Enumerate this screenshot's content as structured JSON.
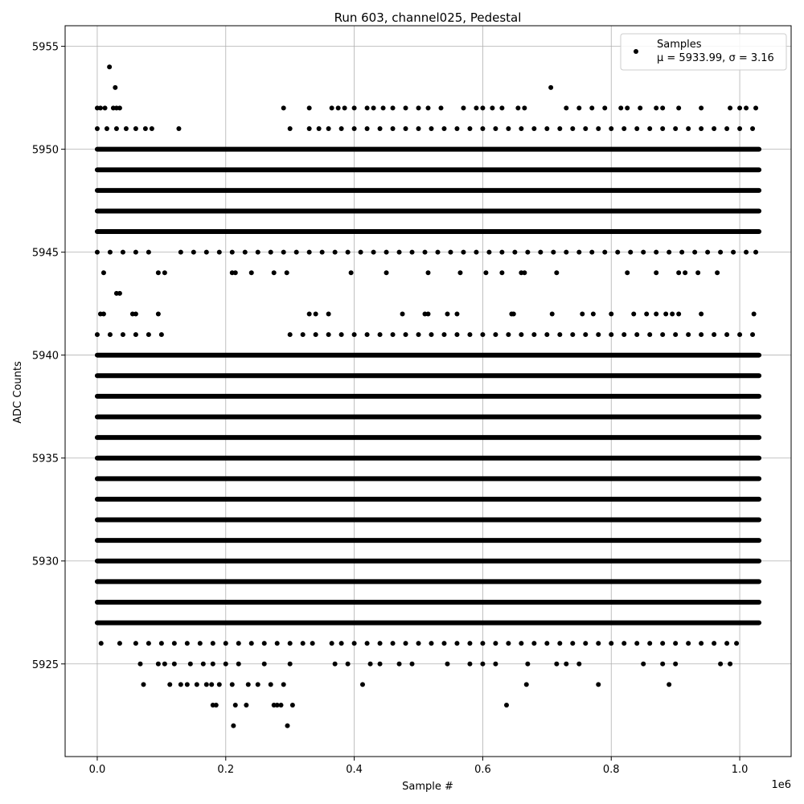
{
  "chart_data": {
    "type": "scatter",
    "title": "Run 603, channel025, Pedestal",
    "xlabel": "Sample #",
    "ylabel": "ADC Counts",
    "x_offset_label": "1e6",
    "xlim": [
      -50000,
      1080000
    ],
    "ylim": [
      5920.5,
      5956
    ],
    "x_ticks": [
      0,
      200000,
      400000,
      600000,
      800000,
      1000000
    ],
    "x_tick_labels": [
      "0.0",
      "0.2",
      "0.4",
      "0.6",
      "0.8",
      "1.0"
    ],
    "y_ticks": [
      5925,
      5930,
      5935,
      5940,
      5945,
      5950,
      5955
    ],
    "y_tick_labels": [
      "5925",
      "5930",
      "5935",
      "5940",
      "5945",
      "5950",
      "5955"
    ],
    "grid": true,
    "legend_position": "top-right",
    "marker_color": "#000000",
    "x_range": [
      0,
      1030000
    ],
    "series": [
      {
        "name": "Samples",
        "stat_label": "μ = 5933.99, σ = 3.16",
        "levels": [
          {
            "y": 5927,
            "x_start": 0,
            "x_end": 1030000
          },
          {
            "y": 5928,
            "x_start": 0,
            "x_end": 1030000
          },
          {
            "y": 5929,
            "x_start": 0,
            "x_end": 1030000
          },
          {
            "y": 5930,
            "x_start": 0,
            "x_end": 1030000
          },
          {
            "y": 5931,
            "x_start": 0,
            "x_end": 1030000
          },
          {
            "y": 5932,
            "x_start": 0,
            "x_end": 1030000
          },
          {
            "y": 5933,
            "x_start": 0,
            "x_end": 1030000
          },
          {
            "y": 5934,
            "x_start": 0,
            "x_end": 1030000
          },
          {
            "y": 5935,
            "x_start": 0,
            "x_end": 1030000
          },
          {
            "y": 5936,
            "x_start": 0,
            "x_end": 1030000
          },
          {
            "y": 5937,
            "x_start": 0,
            "x_end": 1030000
          },
          {
            "y": 5938,
            "x_start": 0,
            "x_end": 1030000
          },
          {
            "y": 5939,
            "x_start": 0,
            "x_end": 1030000
          },
          {
            "y": 5940,
            "x_start": 0,
            "x_end": 1030000
          },
          {
            "y": 5946,
            "x_start": 0,
            "x_end": 1030000
          },
          {
            "y": 5947,
            "x_start": 0,
            "x_end": 1030000
          },
          {
            "y": 5948,
            "x_start": 0,
            "x_end": 1030000
          },
          {
            "y": 5949,
            "x_start": 0,
            "x_end": 1030000
          },
          {
            "y": 5950,
            "x_start": 0,
            "x_end": 1030000
          }
        ],
        "sparse_levels": [
          {
            "y": 5922,
            "x": [
              212000,
              296000
            ]
          },
          {
            "y": 5923,
            "x": [
              180000,
              185000,
              215000,
              232000,
              275000,
              280000,
              286000,
              304000,
              637000
            ]
          },
          {
            "y": 5924,
            "x": [
              72000,
              113000,
              130000,
              140000,
              155000,
              170000,
              178000,
              190000,
              210000,
              235000,
              250000,
              270000,
              290000,
              413000,
              668000,
              780000,
              890000
            ]
          },
          {
            "y": 5925,
            "x": [
              67000,
              95000,
              105000,
              120000,
              145000,
              165000,
              180000,
              200000,
              220000,
              260000,
              300000,
              370000,
              390000,
              425000,
              440000,
              470000,
              490000,
              545000,
              580000,
              600000,
              620000,
              670000,
              715000,
              730000,
              750000,
              850000,
              880000,
              900000,
              970000,
              985000
            ]
          },
          {
            "y": 5926,
            "x": [
              6000,
              35000,
              60000,
              80000,
              100000,
              120000,
              140000,
              160000,
              180000,
              200000,
              220000,
              240000,
              260000,
              280000,
              300000,
              320000,
              335000,
              365000,
              380000,
              400000,
              420000,
              440000,
              460000,
              480000,
              500000,
              520000,
              540000,
              560000,
              580000,
              600000,
              620000,
              640000,
              660000,
              680000,
              700000,
              720000,
              740000,
              760000,
              780000,
              800000,
              820000,
              840000,
              860000,
              880000,
              900000,
              920000,
              940000,
              960000,
              980000,
              995000
            ]
          },
          {
            "y": 5941,
            "x": [
              0,
              20000,
              40000,
              60000,
              80000,
              100000,
              300000,
              320000,
              340000,
              360000,
              380000,
              400000,
              420000,
              440000,
              460000,
              480000,
              500000,
              520000,
              540000,
              560000,
              580000,
              600000,
              620000,
              640000,
              660000,
              680000,
              700000,
              720000,
              740000,
              760000,
              780000,
              800000,
              820000,
              840000,
              860000,
              880000,
              900000,
              920000,
              940000,
              960000,
              980000,
              1000000,
              1020000
            ]
          },
          {
            "y": 5942,
            "x": [
              5000,
              10000,
              55000,
              60000,
              95000,
              330000,
              340000,
              360000,
              475000,
              510000,
              515000,
              545000,
              560000,
              645000,
              648000,
              708000,
              755000,
              772000,
              800000,
              835000,
              855000,
              870000,
              885000,
              895000,
              905000,
              940000,
              1022000
            ]
          },
          {
            "y": 5943,
            "x": [
              30000,
              35000
            ]
          },
          {
            "y": 5944,
            "x": [
              10000,
              95000,
              105000,
              210000,
              215000,
              240000,
              275000,
              295000,
              395000,
              450000,
              515000,
              565000,
              605000,
              630000,
              660000,
              665000,
              715000,
              825000,
              870000,
              905000,
              915000,
              935000,
              965000
            ]
          },
          {
            "y": 5945,
            "x": [
              0,
              20000,
              40000,
              60000,
              80000,
              130000,
              150000,
              170000,
              190000,
              210000,
              230000,
              250000,
              270000,
              290000,
              310000,
              330000,
              350000,
              370000,
              390000,
              410000,
              430000,
              450000,
              470000,
              490000,
              510000,
              530000,
              550000,
              570000,
              590000,
              610000,
              630000,
              650000,
              670000,
              690000,
              710000,
              730000,
              750000,
              770000,
              790000,
              810000,
              830000,
              850000,
              870000,
              890000,
              910000,
              930000,
              950000,
              970000,
              990000,
              1010000,
              1025000
            ]
          },
          {
            "y": 5951,
            "x": [
              0,
              15000,
              30000,
              45000,
              60000,
              75000,
              85000,
              127000,
              300000,
              330000,
              345000,
              360000,
              380000,
              400000,
              420000,
              440000,
              460000,
              480000,
              500000,
              520000,
              540000,
              560000,
              580000,
              600000,
              620000,
              640000,
              660000,
              680000,
              700000,
              720000,
              740000,
              760000,
              780000,
              800000,
              820000,
              840000,
              860000,
              880000,
              900000,
              920000,
              940000,
              960000,
              980000,
              1000000,
              1020000
            ]
          },
          {
            "y": 5952,
            "x": [
              0,
              5000,
              12000,
              25000,
              30000,
              35000,
              290000,
              330000,
              365000,
              375000,
              385000,
              400000,
              420000,
              430000,
              445000,
              460000,
              480000,
              500000,
              515000,
              535000,
              570000,
              590000,
              600000,
              615000,
              630000,
              655000,
              665000,
              730000,
              750000,
              770000,
              790000,
              815000,
              825000,
              845000,
              870000,
              880000,
              905000,
              940000,
              985000,
              1000000,
              1010000,
              1025000
            ]
          },
          {
            "y": 5953,
            "x": [
              28000,
              706000
            ]
          },
          {
            "y": 5954,
            "x": [
              19000
            ]
          }
        ]
      }
    ]
  }
}
